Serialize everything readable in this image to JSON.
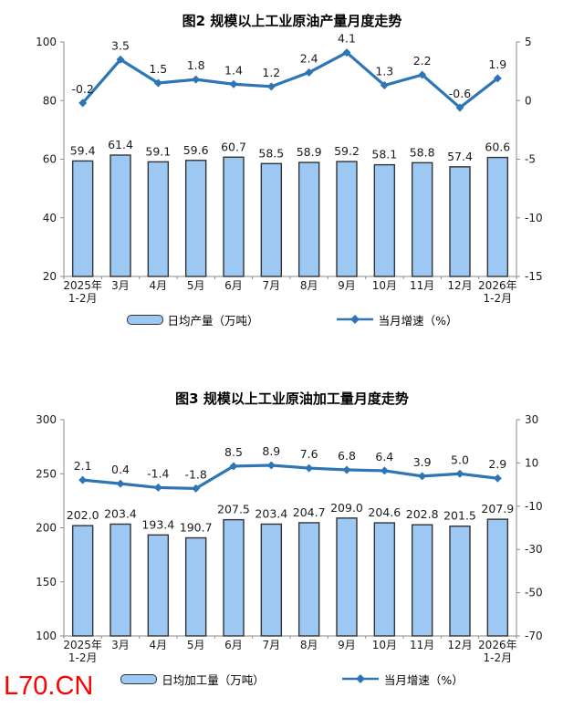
{
  "watermark": {
    "text": "L70.CN",
    "color": "#FF0000"
  },
  "chart_data": [
    {
      "type": "bar+line",
      "title": "图2 规模以上工业原油产量月度走势",
      "categories": [
        "2025年\n1-2月",
        "3月",
        "4月",
        "5月",
        "6月",
        "7月",
        "8月",
        "9月",
        "10月",
        "11月",
        "12月",
        "2026年\n1-2月"
      ],
      "bar_series": {
        "name": "日均产量（万吨）",
        "axis": "left",
        "values": [
          59.4,
          61.4,
          59.1,
          59.6,
          60.7,
          58.5,
          58.9,
          59.2,
          58.1,
          58.8,
          57.4,
          60.6
        ]
      },
      "line_series": {
        "name": "当月增速（%）",
        "axis": "right",
        "values": [
          -0.2,
          3.5,
          1.5,
          1.8,
          1.4,
          1.2,
          2.4,
          4.1,
          1.3,
          2.2,
          -0.6,
          1.9
        ]
      },
      "left_axis": {
        "min": 20,
        "max": 100,
        "ticks": [
          20,
          40,
          60,
          80,
          100
        ]
      },
      "right_axis": {
        "min": -15,
        "max": 5,
        "ticks": [
          -15,
          -10,
          -5,
          0,
          5
        ]
      },
      "grid": false,
      "legend_position": "bottom",
      "label_decimals": 1,
      "colors": {
        "bar_fill": "#9EC8F4",
        "bar_border": "#333333",
        "line": "#2E75B6",
        "text": "#1a1a1a",
        "axis": "#8a8a8a"
      }
    },
    {
      "type": "bar+line",
      "title": "图3 规模以上工业原油加工量月度走势",
      "categories": [
        "2025年\n1-2月",
        "3月",
        "4月",
        "5月",
        "6月",
        "7月",
        "8月",
        "9月",
        "10月",
        "11月",
        "12月",
        "2026年\n1-2月"
      ],
      "bar_series": {
        "name": "日均加工量（万吨）",
        "axis": "left",
        "values": [
          202.0,
          203.4,
          193.4,
          190.7,
          207.5,
          203.4,
          204.7,
          209.0,
          204.6,
          202.8,
          201.5,
          207.9
        ]
      },
      "line_series": {
        "name": "当月增速（%）",
        "axis": "right",
        "values": [
          2.1,
          0.4,
          -1.4,
          -1.8,
          8.5,
          8.9,
          7.6,
          6.8,
          6.4,
          3.9,
          5.0,
          2.9
        ]
      },
      "left_axis": {
        "min": 100,
        "max": 300,
        "ticks": [
          100,
          150,
          200,
          250,
          300
        ]
      },
      "right_axis": {
        "min": -70,
        "max": 30,
        "ticks": [
          -70,
          -50,
          -30,
          -10,
          10,
          30
        ]
      },
      "grid": false,
      "legend_position": "bottom",
      "label_decimals": 1,
      "colors": {
        "bar_fill": "#9EC8F4",
        "bar_border": "#333333",
        "line": "#2E75B6",
        "text": "#1a1a1a",
        "axis": "#8a8a8a"
      }
    }
  ]
}
